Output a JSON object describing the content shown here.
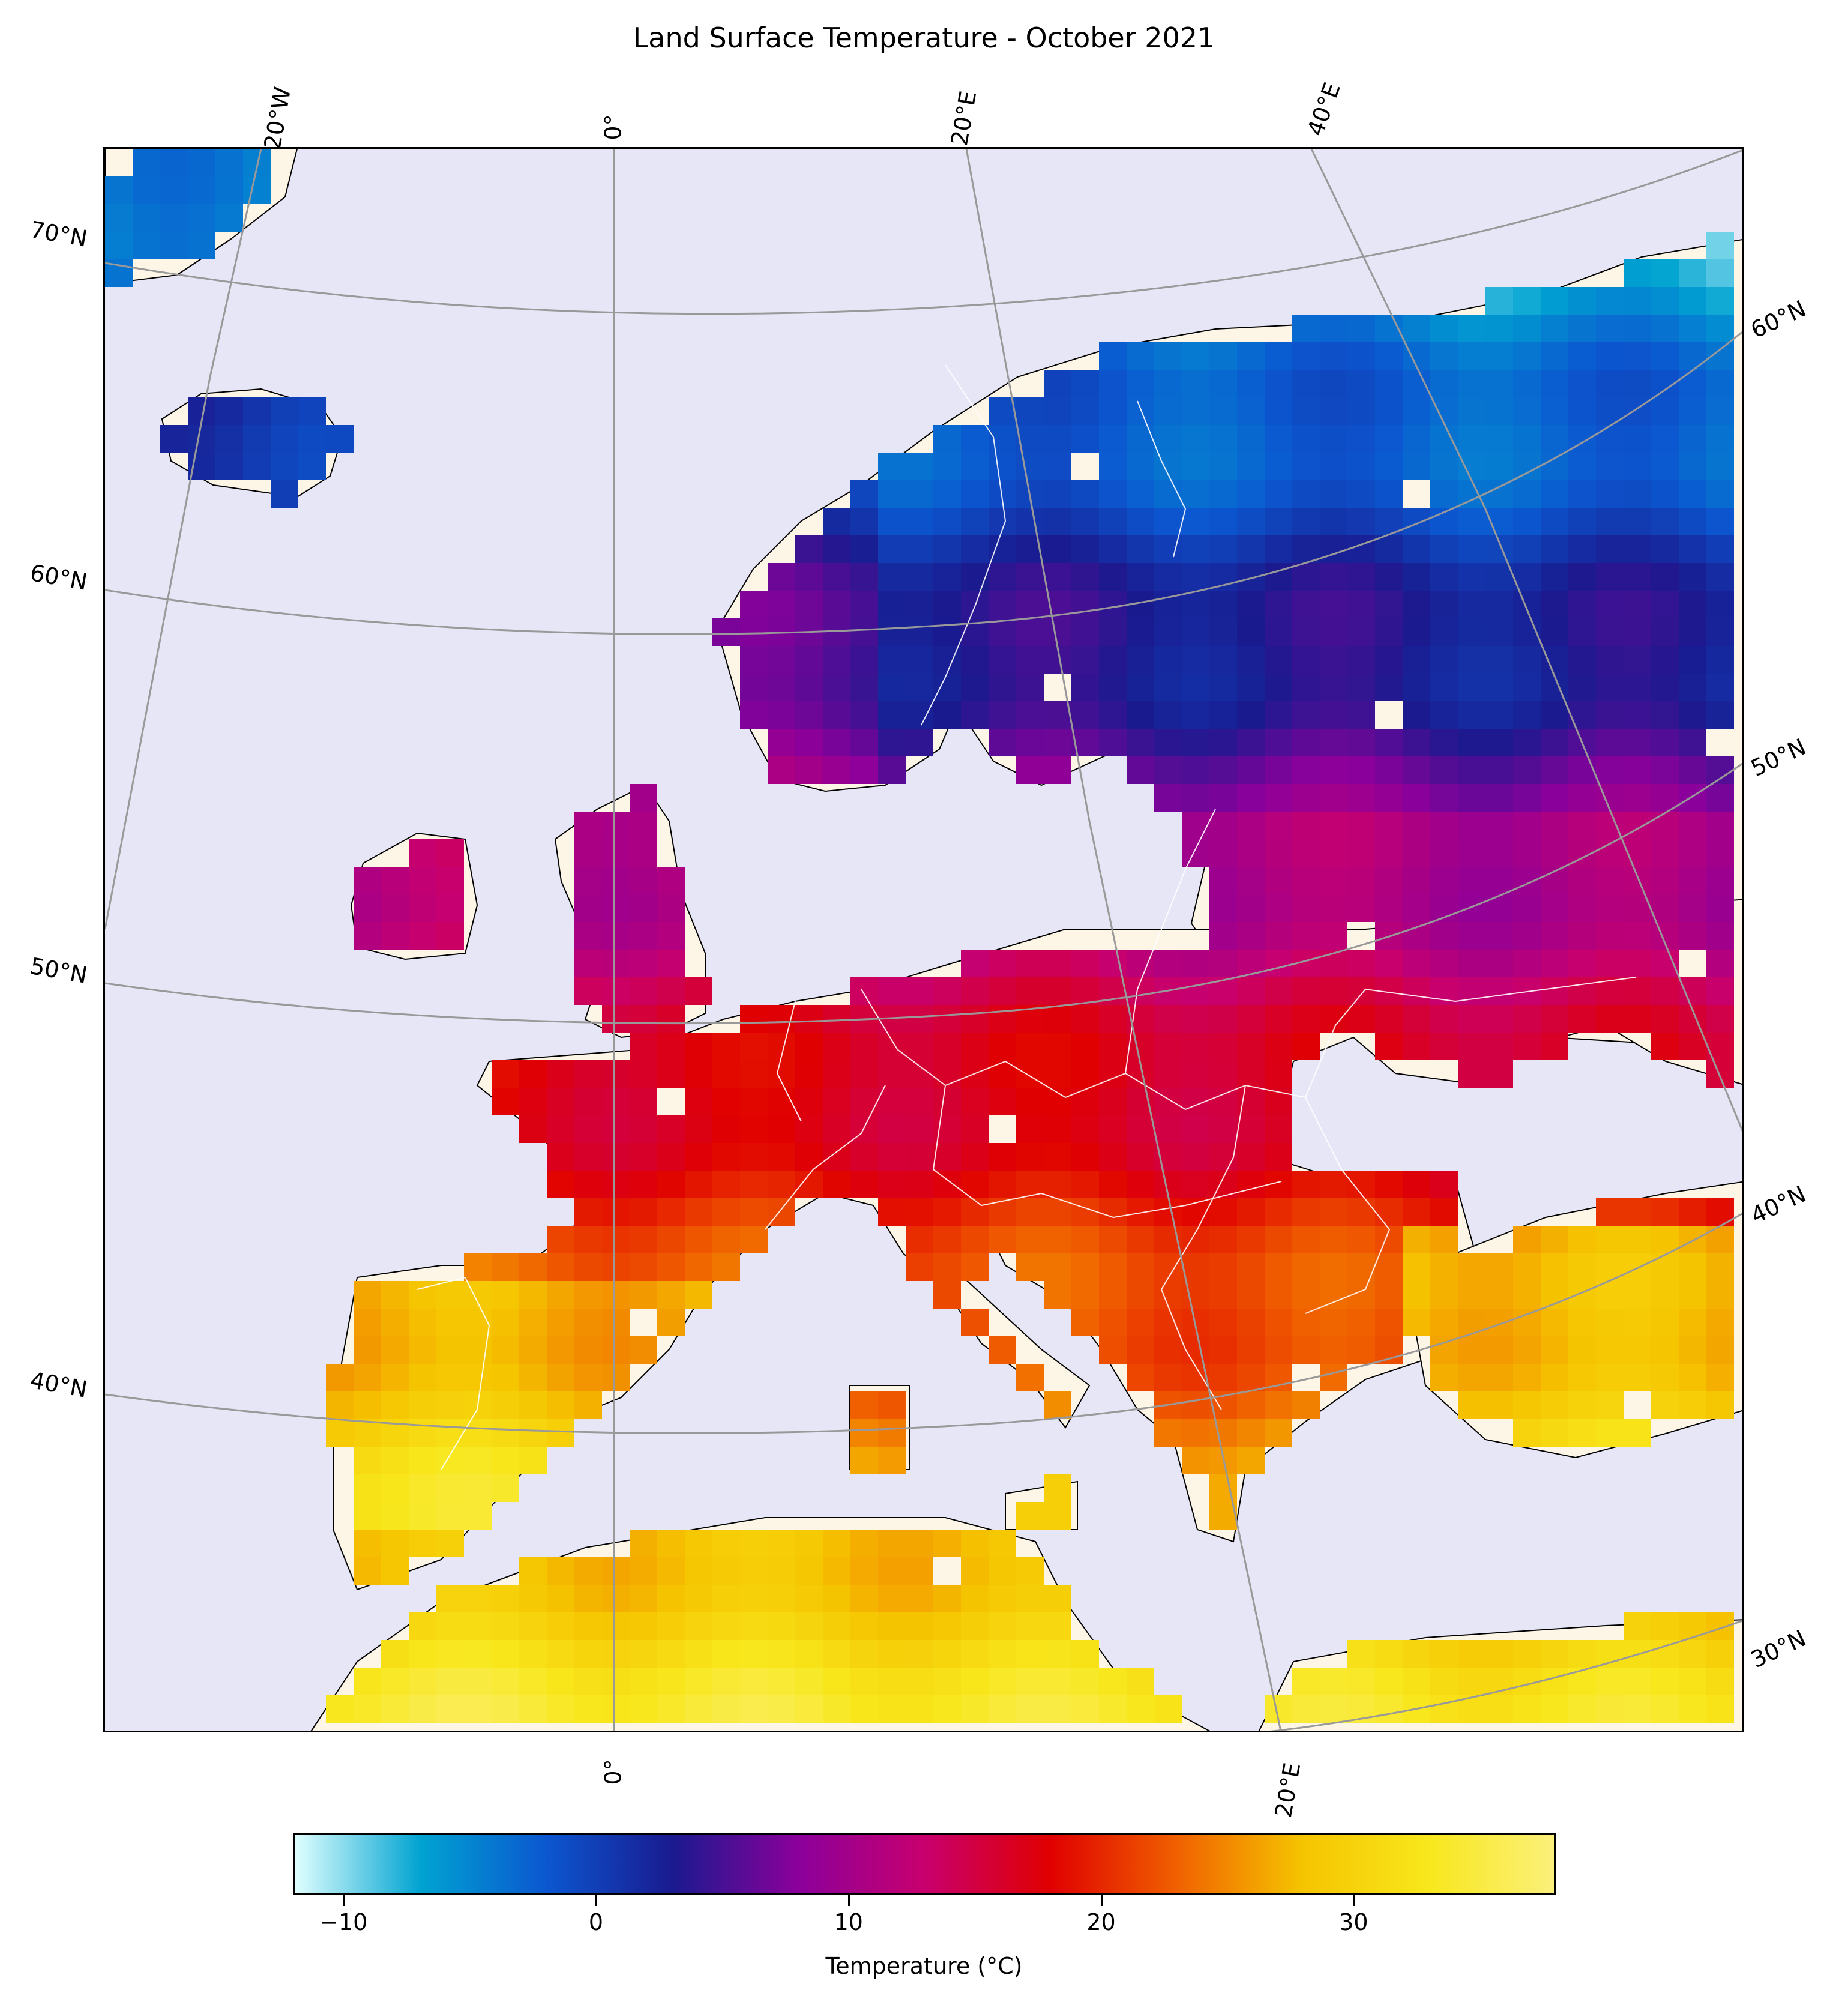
{
  "title": "Land Surface Temperature - October 2021",
  "lon_labels_top": [
    "20°W",
    "0°",
    "20°E",
    "40°E"
  ],
  "lon_labels_bottom": [
    "0°",
    "20°E"
  ],
  "lat_labels_left": [
    "70°N",
    "60°N",
    "50°N",
    "40°N"
  ],
  "lat_labels_right": [
    "60°N",
    "50°N",
    "40°N",
    "30°N"
  ],
  "colorbar": {
    "label": "Temperature (°C)",
    "ticks": [
      "−10",
      "0",
      "10",
      "20",
      "30"
    ],
    "min": -12,
    "max": 38,
    "colors": [
      "#e0ffff",
      "#00a3d1",
      "#0b57d0",
      "#1a1a8f",
      "#8b009b",
      "#c8006e",
      "#e00000",
      "#f06000",
      "#f5c400",
      "#f8e71c",
      "#fbf07a"
    ]
  },
  "colors": {
    "ocean": "#e6e6f7",
    "land": "#fdf5e6",
    "coastline": "#000000",
    "borders": "#ffffff",
    "gridlines": "#999999"
  }
}
